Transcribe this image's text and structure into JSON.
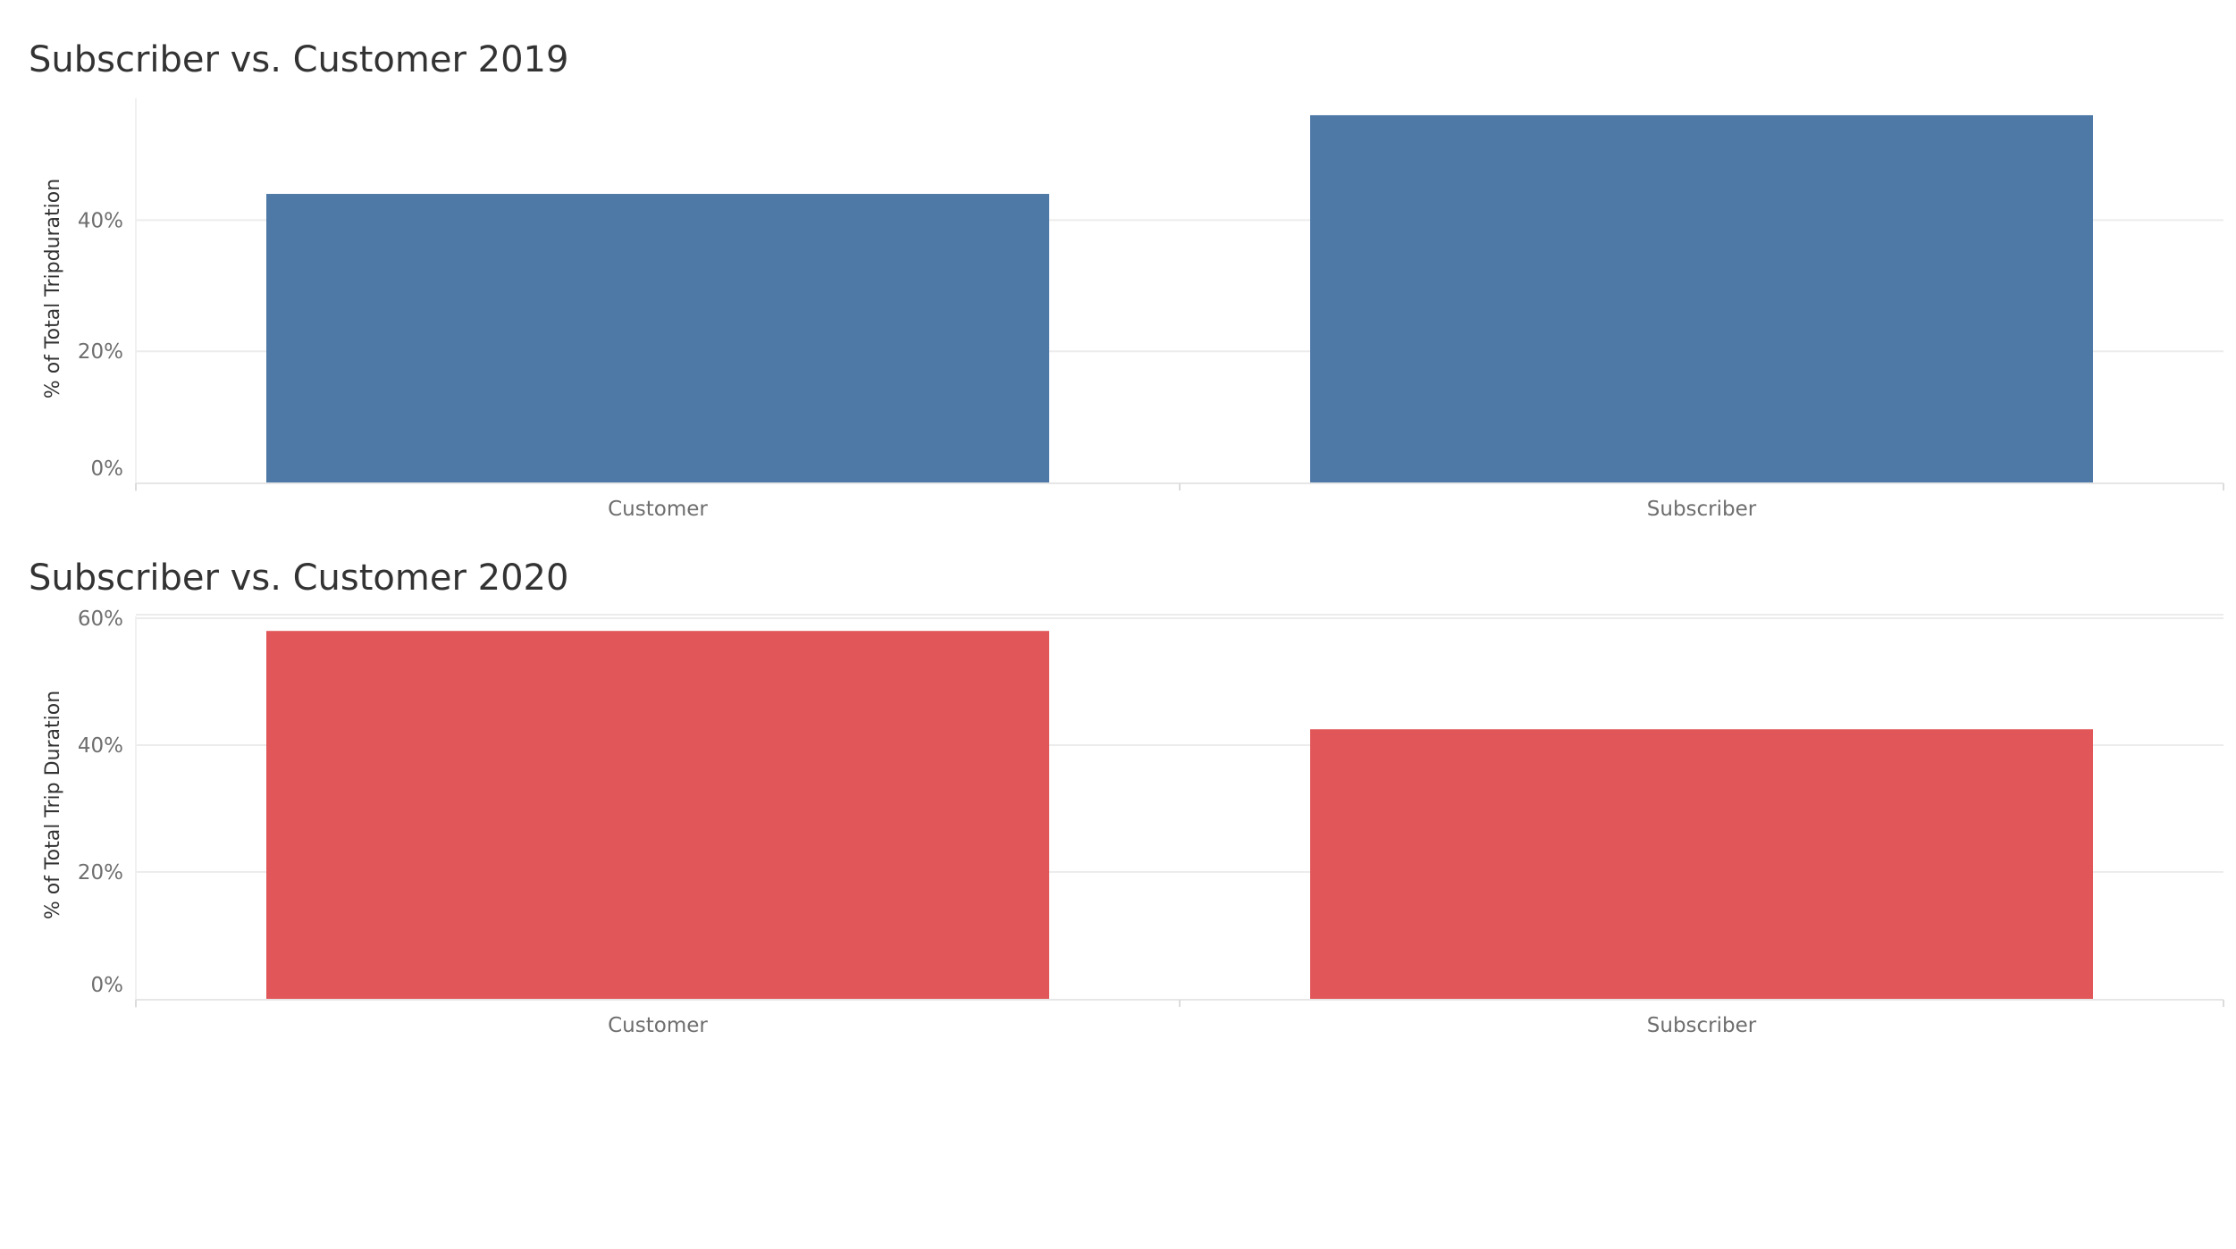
{
  "chart_data": [
    {
      "type": "bar",
      "title": "Subscriber vs. Customer 2019",
      "xlabel": "",
      "ylabel": "% of Total Tripduration",
      "categories": [
        "Customer",
        "Subscriber"
      ],
      "values": [
        44,
        56
      ],
      "ylim": [
        0,
        60
      ],
      "y_ticks": [
        0,
        20,
        40
      ],
      "y_tick_labels": [
        "0%",
        "20%",
        "40%"
      ],
      "grid": true,
      "bar_color": "#4e79a7"
    },
    {
      "type": "bar",
      "title": "Subscriber vs. Customer 2020",
      "xlabel": "",
      "ylabel": "% of Total Trip Duration",
      "categories": [
        "Customer",
        "Subscriber"
      ],
      "values": [
        58,
        42.5
      ],
      "ylim": [
        0,
        60
      ],
      "y_ticks": [
        0,
        20,
        40,
        60
      ],
      "y_tick_labels": [
        "0%",
        "20%",
        "40%",
        "60%"
      ],
      "grid": true,
      "bar_color": "#e15759"
    }
  ]
}
